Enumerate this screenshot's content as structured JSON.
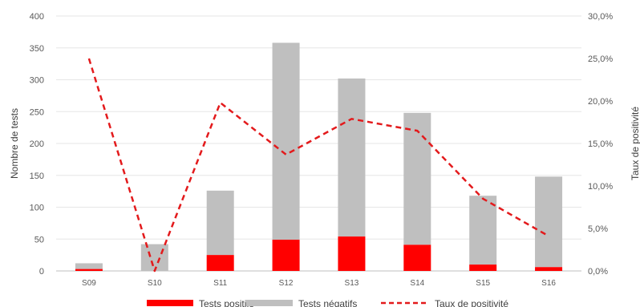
{
  "chart_data": {
    "type": "bar",
    "stacked": true,
    "categories": [
      "S09",
      "S10",
      "S11",
      "S12",
      "S13",
      "S14",
      "S15",
      "S16"
    ],
    "series": [
      {
        "name": "Tests positifs",
        "kind": "bar",
        "axis": "left",
        "color": "#ff0000",
        "values": [
          3,
          0,
          25,
          49,
          54,
          41,
          10,
          6
        ]
      },
      {
        "name": "Tests négatifs",
        "kind": "bar",
        "axis": "left",
        "color": "#bfbfbf",
        "values": [
          9,
          42,
          101,
          309,
          248,
          207,
          108,
          142
        ]
      },
      {
        "name": "Taux de positivité",
        "kind": "line",
        "style": "dashed",
        "axis": "right",
        "color": "#e31a1c",
        "values": [
          25.0,
          0.0,
          19.8,
          13.7,
          17.9,
          16.5,
          8.5,
          4.1
        ]
      }
    ],
    "ylabel": "Nombre de tests",
    "ylim": [
      0,
      400
    ],
    "yticks": [
      "0",
      "50",
      "100",
      "150",
      "200",
      "250",
      "300",
      "350",
      "400"
    ],
    "y2label": "Taux de positivité",
    "y2lim": [
      0,
      30
    ],
    "y2ticks": [
      "0,0%",
      "5,0%",
      "10,0%",
      "15,0%",
      "20,0%",
      "25,0%",
      "30,0%"
    ],
    "grid": true,
    "legend_position": "bottom"
  }
}
